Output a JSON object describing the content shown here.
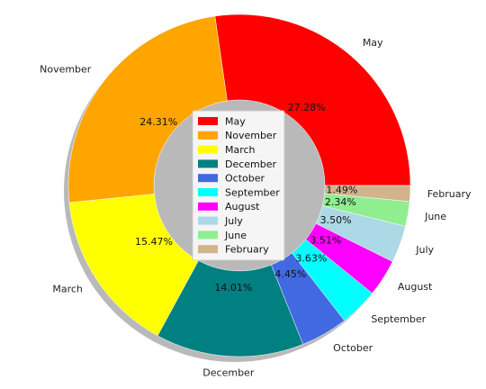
{
  "chart_data": {
    "type": "pie",
    "variant": "donut",
    "shadow": true,
    "legend_position": "center",
    "series": [
      {
        "label": "May",
        "value": 27.28,
        "pct_label": "27.28%",
        "color": "#ff0000"
      },
      {
        "label": "November",
        "value": 24.31,
        "pct_label": "24.31%",
        "color": "#ffa500"
      },
      {
        "label": "March",
        "value": 15.47,
        "pct_label": "15.47%",
        "color": "#ffff00"
      },
      {
        "label": "December",
        "value": 14.01,
        "pct_label": "14.01%",
        "color": "#008080"
      },
      {
        "label": "October",
        "value": 4.45,
        "pct_label": "4.45%",
        "color": "#4169e1"
      },
      {
        "label": "September",
        "value": 3.63,
        "pct_label": "3.63%",
        "color": "#00ffff"
      },
      {
        "label": "August",
        "value": 3.51,
        "pct_label": "3.51%",
        "color": "#ff00ff"
      },
      {
        "label": "July",
        "value": 3.5,
        "pct_label": "3.50%",
        "color": "#add8e6"
      },
      {
        "label": "June",
        "value": 2.34,
        "pct_label": "2.34%",
        "color": "#90ee90"
      },
      {
        "label": "February",
        "value": 1.49,
        "pct_label": "1.49%",
        "color": "#d2b48c"
      }
    ]
  }
}
